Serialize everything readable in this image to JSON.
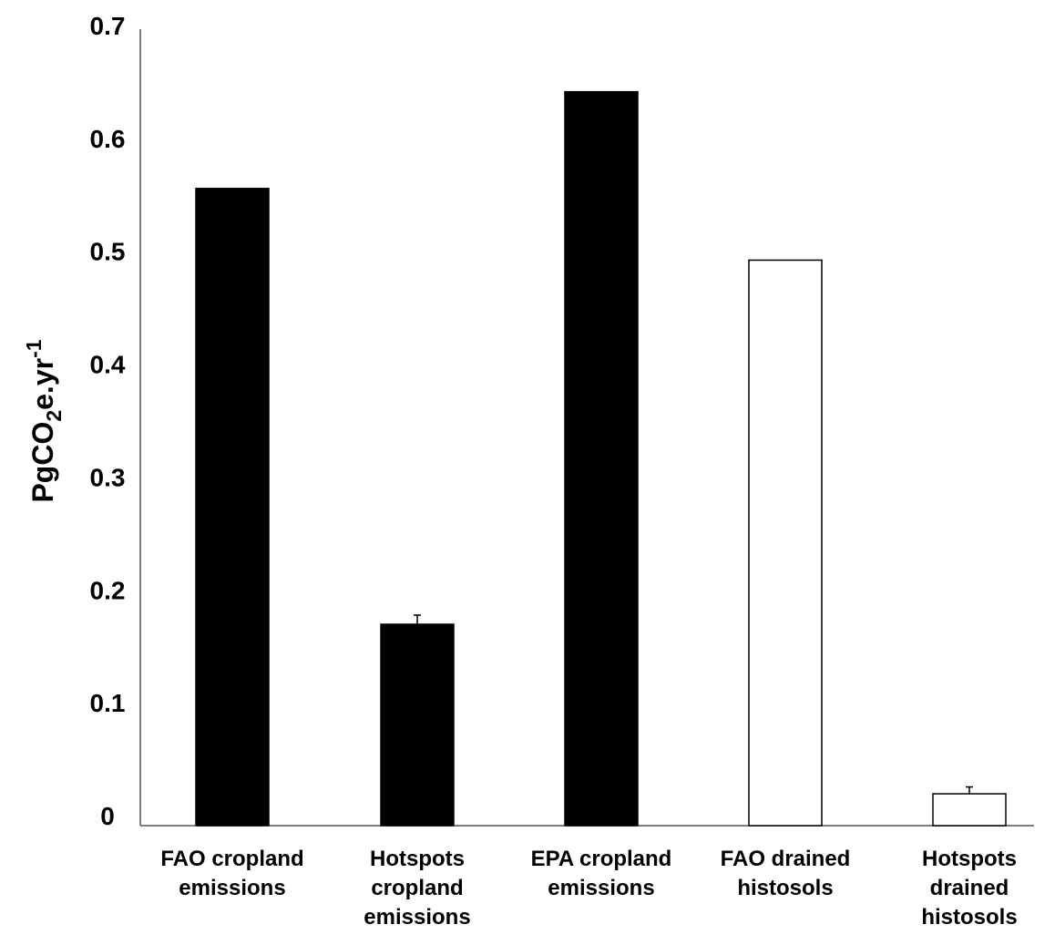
{
  "chart_data": {
    "type": "bar",
    "categories": [
      [
        "FAO cropland",
        "emissions"
      ],
      [
        "Hotspots",
        "cropland",
        "emissions"
      ],
      [
        "EPA cropland",
        "emissions"
      ],
      [
        "FAO drained",
        "histosols"
      ],
      [
        "Hotspots",
        "drained",
        "histosols"
      ]
    ],
    "values": [
      0.56,
      0.177,
      0.645,
      0.497,
      0.028
    ],
    "error_bars": [
      null,
      0.008,
      null,
      null,
      0.006
    ],
    "bar_fills": [
      "#000000",
      "#000000",
      "#000000",
      "#ffffff",
      "#ffffff"
    ],
    "bar_stroke": "#000000",
    "title": "",
    "xlabel": "",
    "ylabel": {
      "base": "PgCO",
      "sub": "2",
      "mid": "e.yr",
      "sup": "-1"
    },
    "ylim": [
      0,
      0.7
    ],
    "yticks": [
      "0",
      "0.1",
      "0.2",
      "0.3",
      "0.4",
      "0.5",
      "0.6",
      "0.7"
    ],
    "grid": false,
    "legend": "none"
  }
}
